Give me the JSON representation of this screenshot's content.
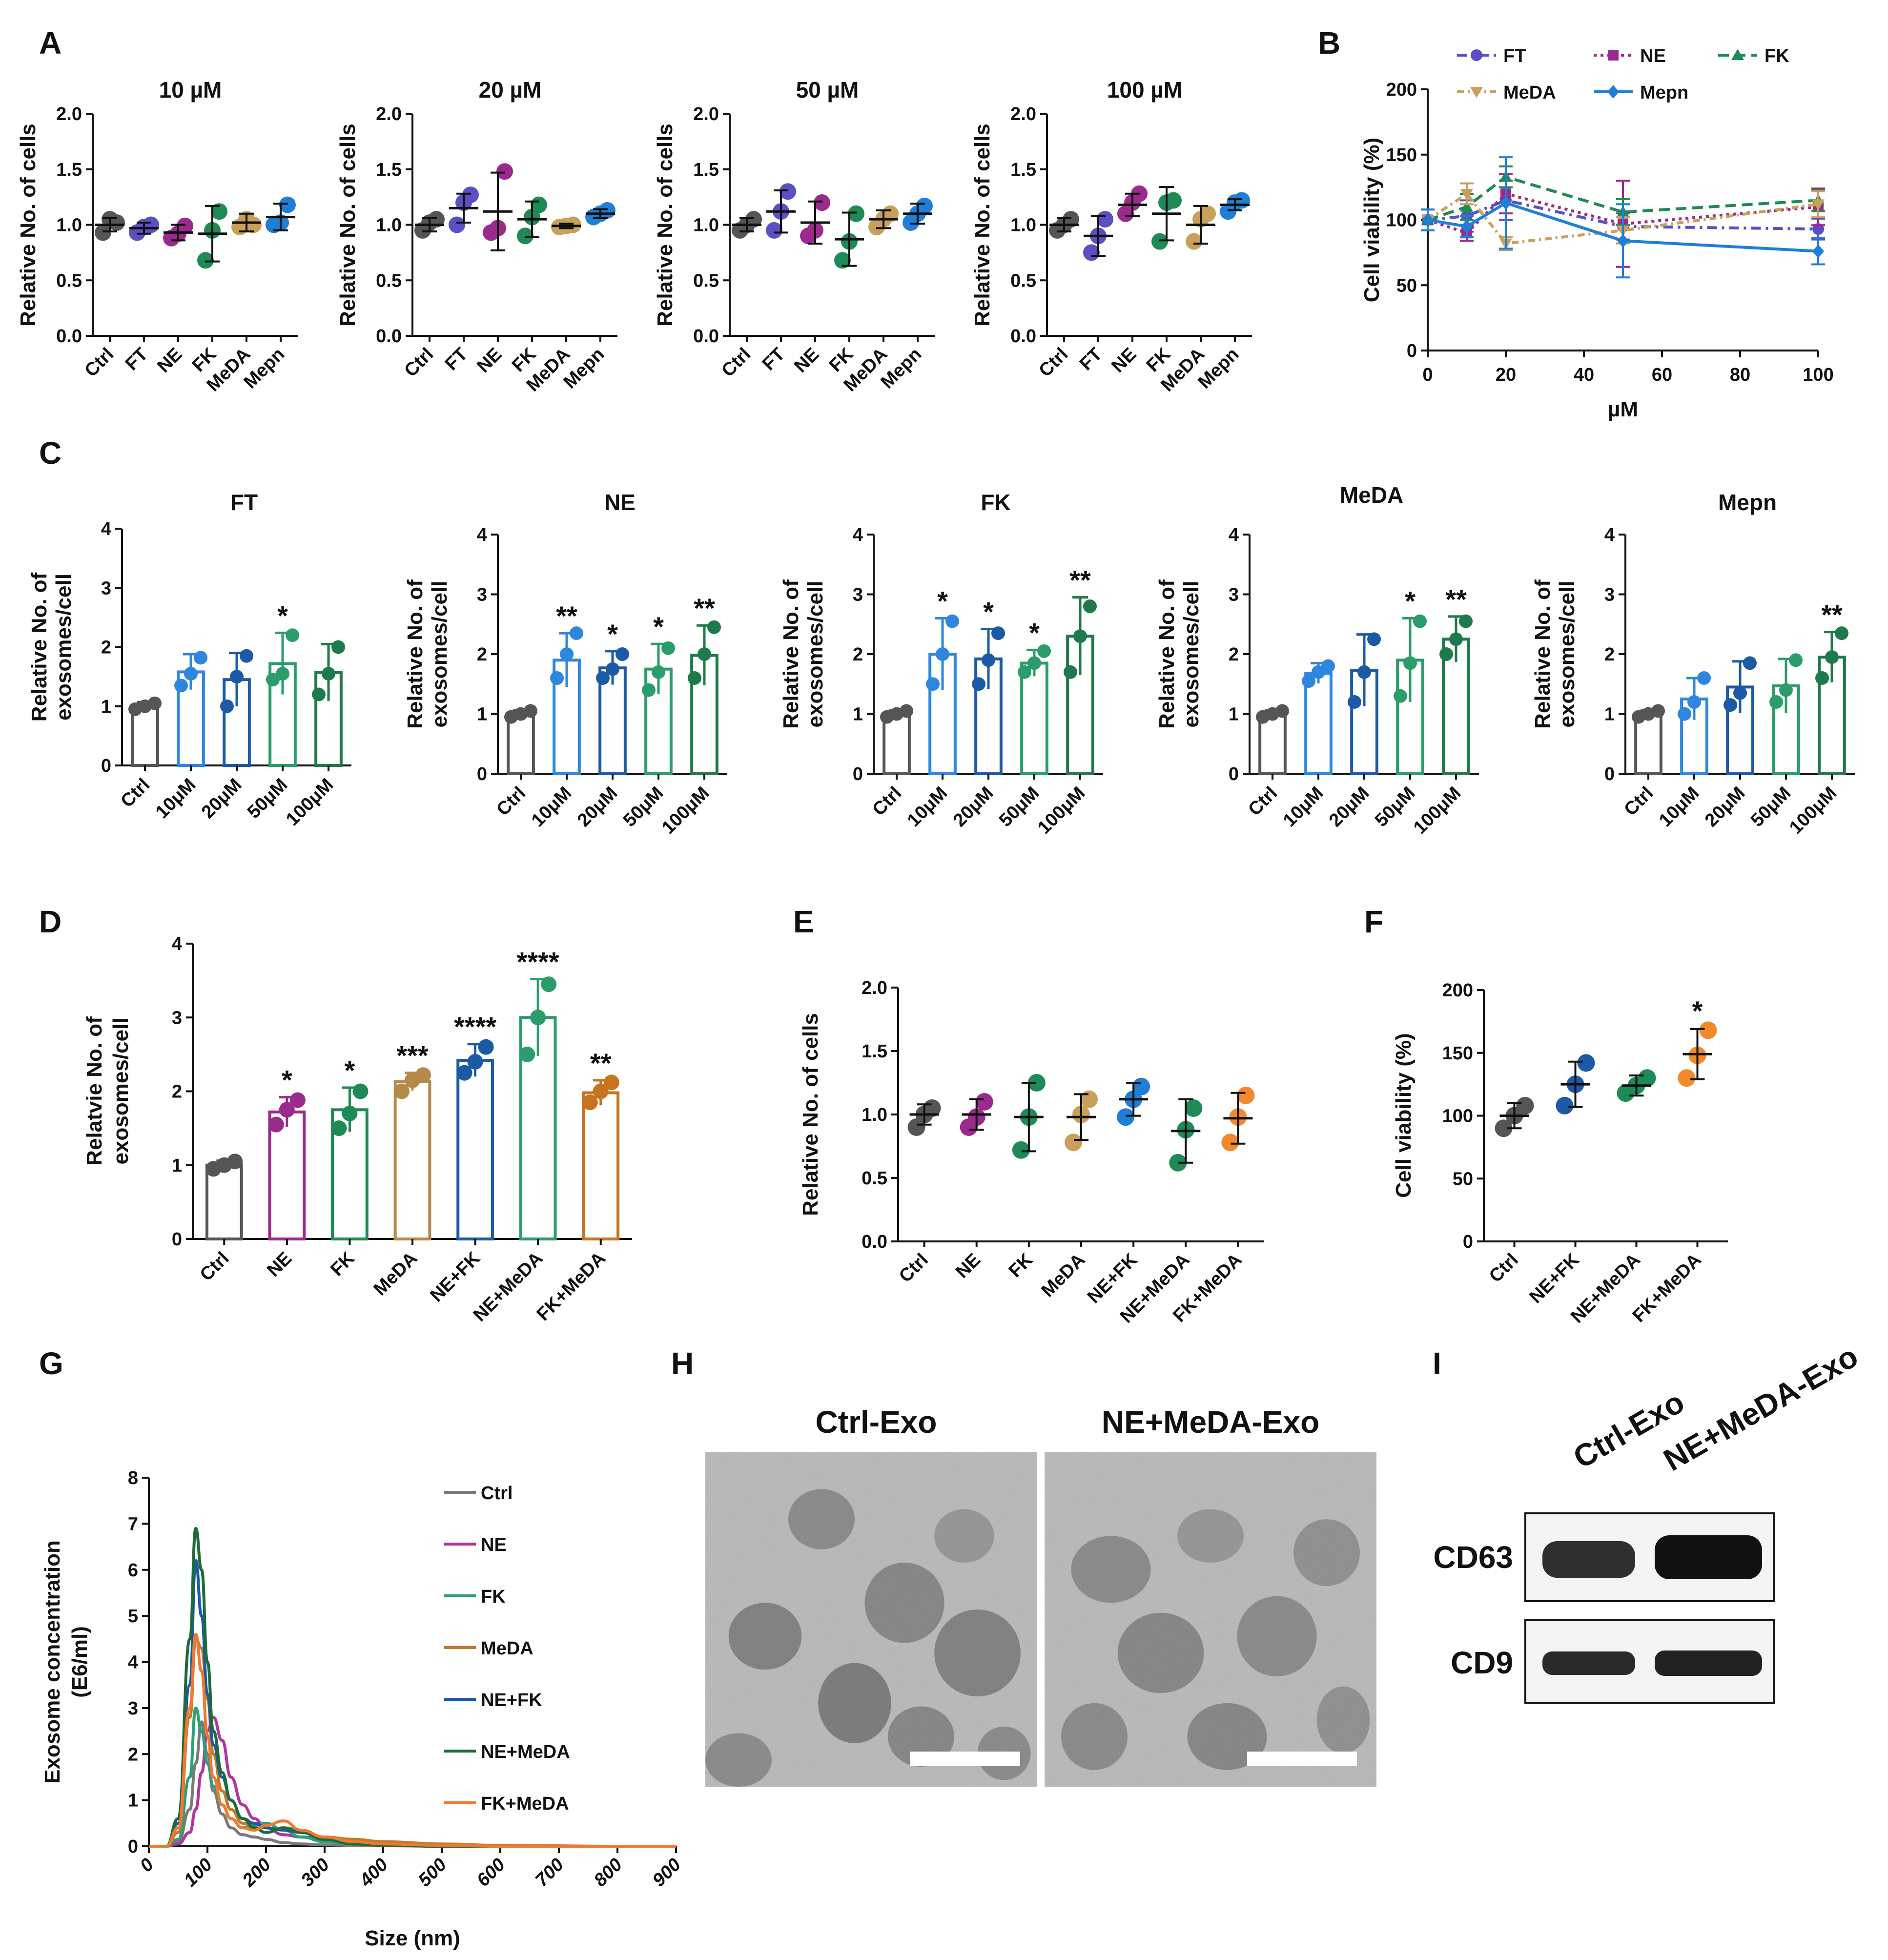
{
  "colors": {
    "ctrl": "#555555",
    "FT": "#5b4fc4",
    "NE": "#9b2a8c",
    "FK": "#1e8a56",
    "MeDA": "#c9a05a",
    "Mepn": "#1f7fd6",
    "c10": "#2e86de",
    "c20": "#1c5aa6",
    "c50": "#2a9d6b",
    "c100": "#1e7a4a",
    "NE_FK": "#1c5aa6",
    "NE_MeDA": "#2a9d6b",
    "FK_MeDA": "#c8741e",
    "MeDA_d": "#b5894a",
    "orange": "#f28a2c"
  },
  "panels": {
    "A": {
      "letter": "A",
      "ylabel": "Relative No. of cells",
      "yticks": [
        "0.0",
        "0.5",
        "1.0",
        "1.5",
        "2.0"
      ],
      "categories": [
        "Ctrl",
        "FT",
        "NE",
        "FK",
        "MeDA",
        "Mepn"
      ]
    },
    "B": {
      "letter": "B"
    },
    "C": {
      "letter": "C"
    },
    "D": {
      "letter": "D"
    },
    "E": {
      "letter": "E"
    },
    "F": {
      "letter": "F"
    },
    "G": {
      "letter": "G"
    },
    "H": {
      "letter": "H",
      "label_left": "Ctrl-Exo",
      "label_right": "NE+MeDA-Exo",
      "image_desc_left": "TEM micrograph",
      "image_desc_right": "TEM micrograph"
    },
    "I": {
      "letter": "I",
      "lanes": [
        "Ctrl-Exo",
        "NE+MeDA-Exo"
      ],
      "bands": [
        "CD63",
        "CD9"
      ]
    }
  },
  "chart_data": [
    {
      "id": "A1",
      "type": "scatter",
      "title": "10 µM",
      "ylabel": "Relative No. of cells",
      "ylim": [
        0,
        2.0
      ],
      "categories": [
        "Ctrl",
        "FT",
        "NE",
        "FK",
        "MeDA",
        "Mepn"
      ],
      "means": [
        1.0,
        0.97,
        0.93,
        0.92,
        1.02,
        1.07
      ],
      "sd": [
        0.06,
        0.05,
        0.07,
        0.25,
        0.08,
        0.12
      ],
      "points": [
        [
          0.93,
          1.05,
          1.02
        ],
        [
          0.93,
          0.98,
          1.0
        ],
        [
          0.88,
          0.92,
          0.99
        ],
        [
          0.68,
          0.95,
          1.12
        ],
        [
          0.98,
          1.05,
          1.0
        ],
        [
          1.0,
          1.02,
          1.18
        ]
      ]
    },
    {
      "id": "A2",
      "type": "scatter",
      "title": "20 µM",
      "ylabel": "Relative No. of cells",
      "ylim": [
        0,
        2.0
      ],
      "categories": [
        "Ctrl",
        "FT",
        "NE",
        "FK",
        "MeDA",
        "Mepn"
      ],
      "means": [
        1.0,
        1.15,
        1.12,
        1.05,
        0.99,
        1.1
      ],
      "sd": [
        0.06,
        0.13,
        0.35,
        0.16,
        0.02,
        0.04
      ],
      "points": [
        [
          0.95,
          1.02,
          1.05
        ],
        [
          1.0,
          1.2,
          1.27
        ],
        [
          0.93,
          0.97,
          1.48
        ],
        [
          0.9,
          1.07,
          1.18
        ],
        [
          0.98,
          0.99,
          1.0
        ],
        [
          1.07,
          1.1,
          1.13
        ]
      ]
    },
    {
      "id": "A3",
      "type": "scatter",
      "title": "50 µM",
      "ylabel": "Relative No. of cells",
      "ylim": [
        0,
        2.0
      ],
      "categories": [
        "Ctrl",
        "FT",
        "NE",
        "FK",
        "MeDA",
        "Mepn"
      ],
      "means": [
        1.0,
        1.12,
        1.02,
        0.87,
        1.05,
        1.1
      ],
      "sd": [
        0.06,
        0.19,
        0.19,
        0.24,
        0.08,
        0.09
      ],
      "points": [
        [
          0.95,
          1.0,
          1.05
        ],
        [
          0.95,
          1.12,
          1.3
        ],
        [
          0.9,
          0.95,
          1.2
        ],
        [
          0.68,
          0.85,
          1.1
        ],
        [
          0.98,
          1.05,
          1.1
        ],
        [
          1.02,
          1.1,
          1.17
        ]
      ]
    },
    {
      "id": "A4",
      "type": "scatter",
      "title": "100 µM",
      "ylabel": "Relative No. of cells",
      "ylim": [
        0,
        2.0
      ],
      "categories": [
        "Ctrl",
        "FT",
        "NE",
        "FK",
        "MeDA",
        "Mepn"
      ],
      "means": [
        1.0,
        0.9,
        1.18,
        1.1,
        1.0,
        1.18
      ],
      "sd": [
        0.06,
        0.18,
        0.1,
        0.24,
        0.17,
        0.05
      ],
      "points": [
        [
          0.95,
          1.0,
          1.05
        ],
        [
          0.75,
          0.9,
          1.05
        ],
        [
          1.1,
          1.2,
          1.28
        ],
        [
          0.85,
          1.2,
          1.22
        ],
        [
          0.85,
          1.05,
          1.1
        ],
        [
          1.12,
          1.2,
          1.22
        ]
      ]
    },
    {
      "id": "B",
      "type": "line",
      "title": "",
      "xlabel": "µM",
      "ylabel": "Cell viability (%)",
      "xlim": [
        0,
        100
      ],
      "ylim": [
        0,
        200
      ],
      "xticks": [
        "0",
        "20",
        "40",
        "60",
        "80",
        "100"
      ],
      "yticks": [
        "0",
        "50",
        "100",
        "150",
        "200"
      ],
      "x": [
        0,
        10,
        20,
        50,
        100
      ],
      "series": [
        {
          "name": "FT",
          "values": [
            100,
            103,
            115,
            95,
            93
          ],
          "err": [
            8,
            12,
            15,
            10,
            8
          ]
        },
        {
          "name": "NE",
          "values": [
            100,
            90,
            120,
            97,
            110
          ],
          "err": [
            8,
            6,
            15,
            33,
            14
          ]
        },
        {
          "name": "FK",
          "values": [
            100,
            110,
            133,
            106,
            115
          ],
          "err": [
            8,
            10,
            8,
            10,
            8
          ]
        },
        {
          "name": "MeDA",
          "values": [
            100,
            120,
            82,
            92,
            112
          ],
          "err": [
            8,
            8,
            5,
            10,
            10
          ]
        },
        {
          "name": "Mepn",
          "values": [
            100,
            95,
            113,
            84,
            76
          ],
          "err": [
            8,
            8,
            35,
            28,
            10
          ]
        }
      ]
    },
    {
      "id": "C1",
      "type": "bar",
      "title": "FT",
      "ylabel": "Relative No. of\nexosomes/cell",
      "ylim": [
        0,
        4
      ],
      "categories": [
        "Ctrl",
        "10μM",
        "20μM",
        "50μM",
        "100μM"
      ],
      "values": [
        1.0,
        1.58,
        1.45,
        1.72,
        1.57
      ],
      "sd": [
        0.07,
        0.3,
        0.45,
        0.52,
        0.48
      ],
      "points": [
        [
          0.95,
          1.0,
          1.05
        ],
        [
          1.35,
          1.55,
          1.82
        ],
        [
          1.0,
          1.5,
          1.85
        ],
        [
          1.45,
          1.55,
          2.2
        ],
        [
          1.2,
          1.55,
          2.0
        ]
      ],
      "stars": [
        "",
        "",
        "",
        "*",
        ""
      ]
    },
    {
      "id": "C2",
      "type": "bar",
      "title": "NE",
      "ylabel": "Relative No. of\nexosomes/cell",
      "ylim": [
        0,
        4
      ],
      "categories": [
        "Ctrl",
        "10μM",
        "20μM",
        "50μM",
        "100μM"
      ],
      "values": [
        1.0,
        1.9,
        1.77,
        1.75,
        1.98
      ],
      "sd": [
        0.06,
        0.45,
        0.28,
        0.42,
        0.5
      ],
      "points": [
        [
          0.95,
          1.0,
          1.05
        ],
        [
          1.6,
          2.0,
          2.35
        ],
        [
          1.6,
          1.75,
          2.0
        ],
        [
          1.4,
          1.7,
          2.1
        ],
        [
          1.6,
          2.0,
          2.45
        ]
      ],
      "stars": [
        "",
        "**",
        "*",
        "*",
        "**"
      ]
    },
    {
      "id": "C3",
      "type": "bar",
      "title": "FK",
      "ylabel": "Relative No. of\nexosomes/cell",
      "ylim": [
        0,
        4
      ],
      "categories": [
        "Ctrl",
        "10μM",
        "20μM",
        "50μM",
        "100μM"
      ],
      "values": [
        1.0,
        2.0,
        1.92,
        1.85,
        2.3
      ],
      "sd": [
        0.06,
        0.6,
        0.5,
        0.22,
        0.65
      ],
      "points": [
        [
          0.95,
          1.0,
          1.05
        ],
        [
          1.5,
          2.0,
          2.55
        ],
        [
          1.5,
          1.9,
          2.35
        ],
        [
          1.7,
          1.85,
          2.05
        ],
        [
          1.7,
          2.3,
          2.8
        ]
      ],
      "stars": [
        "",
        "*",
        "*",
        "*",
        "**"
      ]
    },
    {
      "id": "C4",
      "type": "bar",
      "title": "MeDA",
      "ylabel": "Relative No. of\nexosomes/cell",
      "ylim": [
        0,
        4
      ],
      "categories": [
        "Ctrl",
        "10μM",
        "20μM",
        "50μM",
        "100μM"
      ],
      "values": [
        1.0,
        1.68,
        1.73,
        1.9,
        2.25
      ],
      "sd": [
        0.06,
        0.17,
        0.6,
        0.7,
        0.38
      ],
      "points": [
        [
          0.95,
          1.0,
          1.05
        ],
        [
          1.55,
          1.7,
          1.8
        ],
        [
          1.2,
          1.7,
          2.25
        ],
        [
          1.3,
          1.85,
          2.55
        ],
        [
          2.0,
          2.25,
          2.55
        ]
      ],
      "stars": [
        "",
        "",
        "",
        "*",
        "**"
      ]
    },
    {
      "id": "C5",
      "type": "bar",
      "title": "Mepn",
      "ylabel": "Relative No. of\nexosomes/cell",
      "ylim": [
        0,
        4
      ],
      "categories": [
        "Ctrl",
        "10μM",
        "20μM",
        "50μM",
        "100μM"
      ],
      "values": [
        1.0,
        1.25,
        1.45,
        1.47,
        1.95
      ],
      "sd": [
        0.06,
        0.35,
        0.43,
        0.45,
        0.42
      ],
      "points": [
        [
          0.95,
          1.0,
          1.05
        ],
        [
          1.0,
          1.2,
          1.6
        ],
        [
          1.15,
          1.35,
          1.85
        ],
        [
          1.2,
          1.4,
          1.9
        ],
        [
          1.6,
          1.95,
          2.35
        ]
      ],
      "stars": [
        "",
        "",
        "",
        "",
        "**"
      ]
    },
    {
      "id": "D",
      "type": "bar",
      "title": "",
      "ylabel": "Relatvie No. of\nexosomes/cell",
      "ylim": [
        0,
        4
      ],
      "yticks": [
        "0",
        "1",
        "2",
        "3",
        "4"
      ],
      "categories": [
        "Ctrl",
        "NE",
        "FK",
        "MeDA",
        "NE+FK",
        "NE+MeDA",
        "FK+MeDA"
      ],
      "values": [
        1.0,
        1.72,
        1.75,
        2.13,
        2.42,
        3.0,
        1.98
      ],
      "sd": [
        0.06,
        0.2,
        0.3,
        0.12,
        0.22,
        0.52,
        0.17
      ],
      "points": [
        [
          0.95,
          1.0,
          1.05
        ],
        [
          1.55,
          1.75,
          1.88
        ],
        [
          1.5,
          1.7,
          2.0
        ],
        [
          2.0,
          2.15,
          2.22
        ],
        [
          2.25,
          2.4,
          2.6
        ],
        [
          2.5,
          3.0,
          3.45
        ],
        [
          1.85,
          2.0,
          2.12
        ]
      ],
      "stars": [
        "",
        "*",
        "*",
        "***",
        "****",
        "****",
        "**"
      ]
    },
    {
      "id": "E",
      "type": "scatter",
      "title": "",
      "ylabel": "Relative No. of cells",
      "ylim": [
        0,
        2.0
      ],
      "yticks": [
        "0.0",
        "0.5",
        "1.0",
        "1.5",
        "2.0"
      ],
      "categories": [
        "Ctrl",
        "NE",
        "FK",
        "MeDA",
        "NE+FK",
        "NE+MeDA",
        "FK+MeDA"
      ],
      "means": [
        1.0,
        1.0,
        0.98,
        0.98,
        1.12,
        0.87,
        0.97
      ],
      "sd": [
        0.08,
        0.12,
        0.27,
        0.18,
        0.13,
        0.25,
        0.2
      ],
      "points": [
        [
          0.9,
          1.0,
          1.05
        ],
        [
          0.9,
          0.98,
          1.1
        ],
        [
          0.72,
          0.98,
          1.25
        ],
        [
          0.78,
          1.0,
          1.12
        ],
        [
          0.98,
          1.12,
          1.22
        ],
        [
          0.62,
          0.88,
          1.05
        ],
        [
          0.78,
          0.98,
          1.15
        ]
      ]
    },
    {
      "id": "F",
      "type": "scatter",
      "title": "",
      "ylabel": "Cell viability (%)",
      "ylim": [
        0,
        200
      ],
      "yticks": [
        "0",
        "50",
        "100",
        "150",
        "200"
      ],
      "categories": [
        "Ctrl",
        "NE+FK",
        "NE+MeDA",
        "FK+MeDA"
      ],
      "means": [
        100,
        125,
        124,
        149
      ],
      "sd": [
        10,
        18,
        8,
        20
      ],
      "points": [
        [
          90,
          100,
          108
        ],
        [
          108,
          125,
          142
        ],
        [
          118,
          124,
          130
        ],
        [
          130,
          148,
          168
        ]
      ],
      "stars": [
        "",
        "",
        "",
        "*"
      ]
    },
    {
      "id": "G",
      "type": "line",
      "title": "",
      "xlabel": "Size (nm)",
      "ylabel": "Exosome concentration\n(E6/ml)",
      "xlim": [
        0,
        900
      ],
      "ylim": [
        0,
        8
      ],
      "xticks": [
        "0",
        "100",
        "200",
        "300",
        "400",
        "500",
        "600",
        "700",
        "800",
        "900"
      ],
      "yticks": [
        "0",
        "1",
        "2",
        "3",
        "4",
        "5",
        "6",
        "7",
        "8"
      ],
      "x": [
        0,
        30,
        50,
        70,
        80,
        90,
        100,
        110,
        125,
        140,
        160,
        180,
        200,
        230,
        260,
        300,
        350,
        400,
        500,
        600,
        800,
        900
      ],
      "series": [
        {
          "name": "Ctrl",
          "values": [
            0,
            0,
            0.1,
            0.8,
            1.8,
            2.7,
            2.0,
            1.2,
            0.7,
            0.4,
            0.25,
            0.2,
            0.15,
            0.08,
            0.05,
            0.03,
            0.02,
            0.01,
            0,
            0,
            0,
            0
          ]
        },
        {
          "name": "NE",
          "values": [
            0,
            0,
            0.05,
            0.3,
            0.8,
            1.6,
            2.5,
            2.8,
            2.3,
            1.5,
            0.9,
            0.6,
            0.4,
            0.25,
            0.2,
            0.18,
            0.15,
            0.08,
            0.02,
            0,
            0,
            0
          ]
        },
        {
          "name": "FK",
          "values": [
            0,
            0,
            0.15,
            1.5,
            3.0,
            2.5,
            1.8,
            1.3,
            0.9,
            0.6,
            0.4,
            0.45,
            0.5,
            0.35,
            0.2,
            0.1,
            0.05,
            0.02,
            0,
            0,
            0,
            0
          ]
        },
        {
          "name": "MeDA",
          "values": [
            0,
            0,
            0.3,
            2.8,
            4.5,
            4.3,
            3.2,
            2.0,
            1.2,
            0.8,
            0.5,
            0.4,
            0.3,
            0.4,
            0.35,
            0.2,
            0.15,
            0.1,
            0.05,
            0.02,
            0,
            0
          ]
        },
        {
          "name": "NE+FK",
          "values": [
            0,
            0,
            0.5,
            3.5,
            6.2,
            5.0,
            3.3,
            2.2,
            1.5,
            1.0,
            0.6,
            0.5,
            0.4,
            0.35,
            0.3,
            0.15,
            0.05,
            0.02,
            0,
            0,
            0,
            0
          ]
        },
        {
          "name": "NE+MeDA",
          "values": [
            0,
            0,
            0.6,
            4.5,
            6.9,
            6.0,
            4.0,
            2.5,
            1.6,
            1.0,
            0.6,
            0.4,
            0.3,
            0.4,
            0.3,
            0.15,
            0.05,
            0.02,
            0,
            0,
            0,
            0
          ]
        },
        {
          "name": "FK+MeDA",
          "values": [
            0,
            0,
            0.4,
            3.0,
            4.6,
            3.8,
            2.4,
            1.5,
            0.9,
            0.6,
            0.4,
            0.35,
            0.45,
            0.55,
            0.35,
            0.2,
            0.1,
            0.05,
            0.02,
            0,
            0,
            0
          ]
        }
      ],
      "legend_position": "right"
    }
  ]
}
